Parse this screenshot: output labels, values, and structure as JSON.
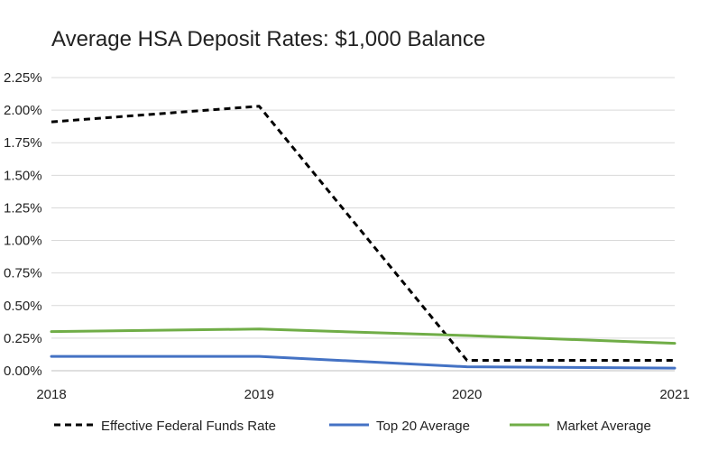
{
  "chart_data": {
    "type": "line",
    "title": "Average HSA Deposit Rates: $1,000 Balance",
    "xlabel": "",
    "ylabel": "",
    "categories": [
      "2018",
      "2019",
      "2020",
      "2021"
    ],
    "ylim": [
      0,
      0.0225
    ],
    "yticks": [
      0,
      0.0025,
      0.005,
      0.0075,
      0.01,
      0.0125,
      0.015,
      0.0175,
      0.02,
      0.0225
    ],
    "ytick_labels": [
      "0.00%",
      "0.25%",
      "0.50%",
      "0.75%",
      "1.00%",
      "1.25%",
      "1.50%",
      "1.75%",
      "2.00%",
      "2.25%"
    ],
    "grid": true,
    "legend_position": "bottom",
    "series": [
      {
        "name": "Effective Federal Funds Rate",
        "values": [
          0.0191,
          0.0203,
          0.0008,
          0.0008
        ],
        "color": "#000000",
        "style": "dashed"
      },
      {
        "name": "Top 20 Average",
        "values": [
          0.0011,
          0.0011,
          0.0003,
          0.0002
        ],
        "color": "#4472C4",
        "style": "solid"
      },
      {
        "name": "Market Average",
        "values": [
          0.003,
          0.0032,
          0.0027,
          0.0021
        ],
        "color": "#70AD47",
        "style": "solid"
      }
    ]
  }
}
